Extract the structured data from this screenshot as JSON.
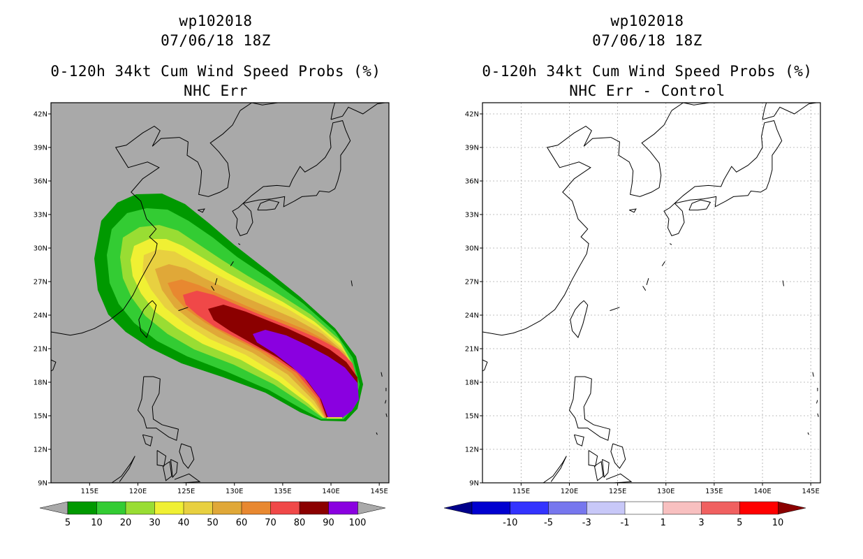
{
  "panels": [
    {
      "title_storm": "wp102018",
      "title_time": "07/06/18 18Z",
      "title_product": "0-120h 34kt Cum Wind Speed Probs (%)",
      "title_model": "NHC Err",
      "background": "#a9a9a9",
      "colorbar_labels": [
        "5",
        "10",
        "20",
        "30",
        "40",
        "50",
        "60",
        "70",
        "80",
        "90",
        "100"
      ],
      "colorbar_colors": [
        "#009900",
        "#33cc33",
        "#99dd33",
        "#f0f033",
        "#e8d040",
        "#e0a838",
        "#e88830",
        "#f04848",
        "#8b0000",
        "#8a00e0"
      ],
      "colorbar_end_left": "#a9a9a9",
      "colorbar_end_right": "#a9a9a9"
    },
    {
      "title_storm": "wp102018",
      "title_time": "07/06/18 18Z",
      "title_product": "0-120h 34kt Cum Wind Speed Probs (%)",
      "title_model": "NHC Err - Control",
      "background": "#ffffff",
      "colorbar_labels": [
        "-10",
        "-5",
        "-3",
        "-1",
        "1",
        "3",
        "5",
        "10"
      ],
      "colorbar_colors": [
        "#0000d0",
        "#3333ff",
        "#7777ee",
        "#c8c8f8",
        "#ffffff",
        "#f8c0c0",
        "#f06060",
        "#ff0000"
      ],
      "colorbar_end_left": "#00008b",
      "colorbar_end_right": "#8b0000"
    }
  ],
  "map": {
    "lon_labels": [
      "115E",
      "120E",
      "125E",
      "130E",
      "135E",
      "140E",
      "145E"
    ],
    "lat_labels": [
      "9N",
      "12N",
      "15N",
      "18N",
      "21N",
      "24N",
      "27N",
      "30N",
      "33N",
      "36N",
      "39N",
      "42N"
    ]
  },
  "chart_data": {
    "type": "heatmap",
    "variable": "0-120h 34kt Cum Wind Speed Probs (%)",
    "storm": "wp102018",
    "time": "07/06/18 18Z",
    "lon_range": [
      111,
      146
    ],
    "lat_range": [
      9,
      43
    ],
    "contour_levels": [
      5,
      10,
      20,
      30,
      40,
      50,
      60,
      70,
      80,
      90,
      100
    ],
    "difference_levels": [
      -10,
      -5,
      -3,
      -1,
      1,
      3,
      5,
      10
    ]
  }
}
